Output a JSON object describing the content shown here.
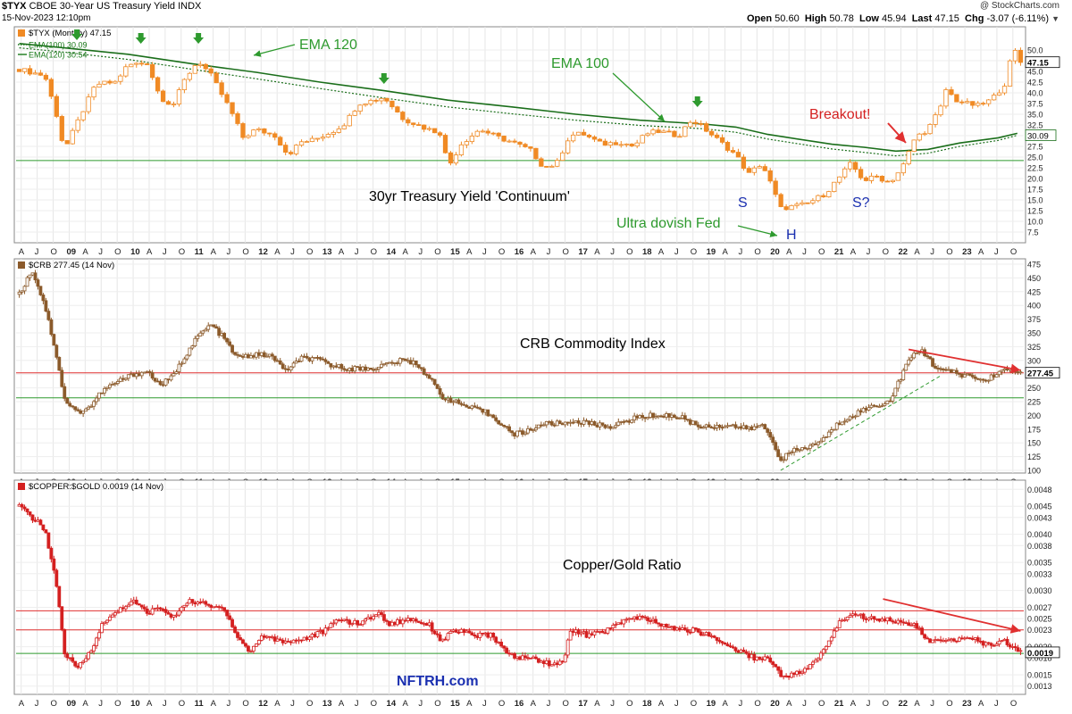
{
  "header": {
    "symbol": "$TYX",
    "name": "CBOE 30-Year US Treasury Yield",
    "exchange": "INDX",
    "date": "15-Nov-2023 12:10pm",
    "brand": "@ StockCharts.com",
    "open_label": "Open",
    "open": "50.60",
    "high_label": "High",
    "high": "50.78",
    "low_label": "Low",
    "low": "45.94",
    "last_label": "Last",
    "last": "47.15",
    "chg_label": "Chg",
    "chg": "-3.07 (-6.11%)",
    "chevron_icon": "chevron-down-icon"
  },
  "x_axis": {
    "labels": [
      "A",
      "J",
      "O",
      "09",
      "A",
      "J",
      "O",
      "10",
      "A",
      "J",
      "O",
      "11",
      "A",
      "J",
      "O",
      "12",
      "A",
      "J",
      "O",
      "13",
      "A",
      "J",
      "O",
      "14",
      "A",
      "J",
      "O",
      "15",
      "A",
      "J",
      "O",
      "16",
      "A",
      "J",
      "O",
      "17",
      "A",
      "J",
      "O",
      "18",
      "A",
      "J",
      "O",
      "19",
      "A",
      "J",
      "O",
      "20",
      "A",
      "J",
      "O",
      "21",
      "A",
      "J",
      "O",
      "22",
      "A",
      "J",
      "O",
      "23",
      "A",
      "J",
      "O"
    ],
    "year_labels": [
      "09",
      "10",
      "11",
      "12",
      "13",
      "14",
      "15",
      "16",
      "17",
      "18",
      "19",
      "20",
      "21",
      "22",
      "23"
    ]
  },
  "chart_data": [
    {
      "type": "candlestick",
      "id": "tyx",
      "legend_title": "$TYX (Monthly) 47.15",
      "legend": [
        {
          "name": "EMA(100) 30.09",
          "color": "#1a7a1a",
          "style": "dotted"
        },
        {
          "name": "EMA(120) 30.54",
          "color": "#1a7a1a",
          "style": "solid"
        }
      ],
      "ylim": [
        7.5,
        52.5
      ],
      "yticks": [
        "50.0",
        "47.5",
        "45.0",
        "42.5",
        "40.0",
        "37.5",
        "35.0",
        "32.5",
        "30.0",
        "27.5",
        "25.0",
        "22.5",
        "20.0",
        "17.5",
        "15.0",
        "12.5",
        "10.0",
        "7.5"
      ],
      "last_value": "47.15",
      "ema100_value": "30.09",
      "up_color": "#ffffff",
      "down_color": "#f08a24",
      "hlines": [
        {
          "y": 24.2,
          "color": "#2e9a2e"
        }
      ],
      "ema120": [
        [
          2008.3,
          51.5
        ],
        [
          2009,
          50.5
        ],
        [
          2010,
          49.0
        ],
        [
          2011,
          46.8
        ],
        [
          2012,
          44.8
        ],
        [
          2013,
          42.5
        ],
        [
          2014,
          40.5
        ],
        [
          2015,
          38.3
        ],
        [
          2016,
          36.7
        ],
        [
          2017,
          35.0
        ],
        [
          2018,
          33.6
        ],
        [
          2019,
          32.7
        ],
        [
          2019.5,
          32.0
        ],
        [
          2020,
          30.3
        ],
        [
          2021,
          28.0
        ],
        [
          2021.5,
          27.3
        ],
        [
          2022,
          26.4
        ],
        [
          2022.5,
          26.8
        ],
        [
          2023,
          28.3
        ],
        [
          2023.6,
          29.5
        ],
        [
          2023.9,
          30.54
        ]
      ],
      "ema100": [
        [
          2008.3,
          50.5
        ],
        [
          2009,
          49.5
        ],
        [
          2010,
          47.8
        ],
        [
          2011,
          45.5
        ],
        [
          2012,
          43.3
        ],
        [
          2013,
          41.0
        ],
        [
          2014,
          38.8
        ],
        [
          2015,
          36.7
        ],
        [
          2016,
          35.1
        ],
        [
          2017,
          33.6
        ],
        [
          2018,
          32.4
        ],
        [
          2019,
          31.6
        ],
        [
          2019.5,
          30.8
        ],
        [
          2020,
          29.2
        ],
        [
          2021,
          26.9
        ],
        [
          2021.5,
          26.1
        ],
        [
          2022,
          25.3
        ],
        [
          2022.5,
          25.9
        ],
        [
          2023,
          27.5
        ],
        [
          2023.6,
          28.9
        ],
        [
          2023.9,
          30.09
        ]
      ],
      "series": [
        [
          2008.3,
          45.5
        ],
        [
          2008.7,
          44.0
        ],
        [
          2008.9,
          34.0
        ],
        [
          2009.0,
          26.5
        ],
        [
          2009.3,
          36.0
        ],
        [
          2009.5,
          42.0
        ],
        [
          2009.8,
          42.5
        ],
        [
          2010.0,
          46.5
        ],
        [
          2010.3,
          47.0
        ],
        [
          2010.5,
          39.0
        ],
        [
          2010.7,
          37.0
        ],
        [
          2010.9,
          43.5
        ],
        [
          2011.1,
          47.5
        ],
        [
          2011.3,
          44.0
        ],
        [
          2011.6,
          36.0
        ],
        [
          2011.8,
          29.5
        ],
        [
          2012.0,
          31.5
        ],
        [
          2012.3,
          30.0
        ],
        [
          2012.5,
          25.5
        ],
        [
          2012.7,
          28.5
        ],
        [
          2012.9,
          29.0
        ],
        [
          2013.2,
          31.0
        ],
        [
          2013.4,
          33.0
        ],
        [
          2013.6,
          37.5
        ],
        [
          2013.9,
          38.5
        ],
        [
          2014.0,
          39.0
        ],
        [
          2014.3,
          34.0
        ],
        [
          2014.6,
          32.0
        ],
        [
          2014.9,
          30.5
        ],
        [
          2015.0,
          22.5
        ],
        [
          2015.2,
          28.0
        ],
        [
          2015.5,
          31.5
        ],
        [
          2015.8,
          29.5
        ],
        [
          2016.0,
          28.5
        ],
        [
          2016.3,
          26.5
        ],
        [
          2016.5,
          22.5
        ],
        [
          2016.7,
          23.5
        ],
        [
          2016.9,
          30.0
        ],
        [
          2017.1,
          30.5
        ],
        [
          2017.4,
          28.0
        ],
        [
          2017.7,
          28.5
        ],
        [
          2017.9,
          27.5
        ],
        [
          2018.1,
          30.5
        ],
        [
          2018.3,
          31.0
        ],
        [
          2018.6,
          30.0
        ],
        [
          2018.8,
          33.5
        ],
        [
          2018.9,
          33.0
        ],
        [
          2019.1,
          30.5
        ],
        [
          2019.3,
          28.0
        ],
        [
          2019.5,
          25.5
        ],
        [
          2019.7,
          21.0
        ],
        [
          2019.9,
          23.5
        ],
        [
          2020.0,
          20.5
        ],
        [
          2020.2,
          13.0
        ],
        [
          2020.4,
          13.5
        ],
        [
          2020.6,
          14.0
        ],
        [
          2020.9,
          16.5
        ],
        [
          2021.1,
          20.0
        ],
        [
          2021.3,
          23.5
        ],
        [
          2021.5,
          19.5
        ],
        [
          2021.7,
          20.5
        ],
        [
          2021.9,
          19.0
        ],
        [
          2022.1,
          22.5
        ],
        [
          2022.3,
          29.5
        ],
        [
          2022.5,
          31.5
        ],
        [
          2022.7,
          36.5
        ],
        [
          2022.8,
          41.5
        ],
        [
          2022.9,
          38.5
        ],
        [
          2023.1,
          37.5
        ],
        [
          2023.3,
          37.0
        ],
        [
          2023.5,
          38.5
        ],
        [
          2023.7,
          42.0
        ],
        [
          2023.8,
          48.0
        ],
        [
          2023.9,
          50.5
        ],
        [
          2023.95,
          47.15
        ]
      ],
      "annotations": [
        {
          "text": "EMA 120",
          "color": "#2e9a2e"
        },
        {
          "text": "EMA 100",
          "color": "#2e9a2e"
        },
        {
          "text": "Breakout!",
          "color": "#d42020"
        },
        {
          "text": "30yr Treasury Yield 'Continuum'",
          "color": "#000000"
        },
        {
          "text": "Ultra dovish Fed",
          "color": "#2e9a2e"
        },
        {
          "text": "S",
          "color": "#1a2fb0"
        },
        {
          "text": "H",
          "color": "#1a2fb0"
        },
        {
          "text": "S?",
          "color": "#1a2fb0"
        }
      ],
      "marker_arrows": [
        2009.2,
        2010.2,
        2011.1,
        2014.0,
        2018.9
      ]
    },
    {
      "type": "candlestick",
      "id": "crb",
      "legend_title": "$CRB 277.45 (14 Nov)",
      "ylim": [
        100,
        475
      ],
      "yticks": [
        "475",
        "450",
        "425",
        "400",
        "375",
        "350",
        "325",
        "300",
        "275",
        "250",
        "225",
        "200",
        "175",
        "150",
        "125",
        "100"
      ],
      "last_value": "277.45",
      "up_color": "#ffffff",
      "down_color": "#8b5a2b",
      "hlines": [
        {
          "y": 277.45,
          "color": "#e03030"
        },
        {
          "y": 232,
          "color": "#2e9a2e"
        }
      ],
      "series": [
        [
          2008.3,
          420
        ],
        [
          2008.5,
          465
        ],
        [
          2008.7,
          400
        ],
        [
          2008.9,
          300
        ],
        [
          2009.0,
          230
        ],
        [
          2009.2,
          205
        ],
        [
          2009.4,
          215
        ],
        [
          2009.6,
          245
        ],
        [
          2009.9,
          265
        ],
        [
          2010.1,
          275
        ],
        [
          2010.3,
          280
        ],
        [
          2010.5,
          255
        ],
        [
          2010.7,
          270
        ],
        [
          2010.9,
          310
        ],
        [
          2011.1,
          345
        ],
        [
          2011.3,
          365
        ],
        [
          2011.5,
          340
        ],
        [
          2011.7,
          305
        ],
        [
          2012.0,
          310
        ],
        [
          2012.2,
          310
        ],
        [
          2012.5,
          280
        ],
        [
          2012.7,
          305
        ],
        [
          2013.0,
          300
        ],
        [
          2013.2,
          290
        ],
        [
          2013.5,
          285
        ],
        [
          2013.8,
          285
        ],
        [
          2014.1,
          295
        ],
        [
          2014.3,
          300
        ],
        [
          2014.5,
          295
        ],
        [
          2014.7,
          270
        ],
        [
          2014.9,
          235
        ],
        [
          2015.1,
          225
        ],
        [
          2015.3,
          215
        ],
        [
          2015.6,
          205
        ],
        [
          2015.9,
          180
        ],
        [
          2016.0,
          165
        ],
        [
          2016.2,
          170
        ],
        [
          2016.5,
          185
        ],
        [
          2016.8,
          185
        ],
        [
          2017.0,
          190
        ],
        [
          2017.3,
          183
        ],
        [
          2017.6,
          180
        ],
        [
          2017.9,
          195
        ],
        [
          2018.2,
          200
        ],
        [
          2018.4,
          200
        ],
        [
          2018.7,
          195
        ],
        [
          2018.9,
          180
        ],
        [
          2019.1,
          180
        ],
        [
          2019.4,
          182
        ],
        [
          2019.7,
          175
        ],
        [
          2019.9,
          182
        ],
        [
          2020.0,
          170
        ],
        [
          2020.2,
          120
        ],
        [
          2020.4,
          135
        ],
        [
          2020.7,
          145
        ],
        [
          2020.9,
          160
        ],
        [
          2021.1,
          185
        ],
        [
          2021.3,
          200
        ],
        [
          2021.6,
          215
        ],
        [
          2021.9,
          225
        ],
        [
          2022.0,
          250
        ],
        [
          2022.2,
          300
        ],
        [
          2022.4,
          320
        ],
        [
          2022.6,
          290
        ],
        [
          2022.8,
          280
        ],
        [
          2023.0,
          275
        ],
        [
          2023.2,
          270
        ],
        [
          2023.4,
          262
        ],
        [
          2023.6,
          280
        ],
        [
          2023.8,
          282
        ],
        [
          2023.95,
          277.45
        ]
      ],
      "trendlines": [
        {
          "from": [
            2020.2,
            100
          ],
          "to": [
            2022.7,
            272
          ],
          "color": "#2e9a2e",
          "dash": true
        },
        {
          "from": [
            2022.2,
            320
          ],
          "to": [
            2023.95,
            282
          ],
          "color": "#e03030",
          "dash": false
        }
      ],
      "annotations": [
        {
          "text": "CRB Commodity Index",
          "color": "#000000"
        }
      ]
    },
    {
      "type": "candlestick",
      "id": "coppergold",
      "legend_title": "$COPPER:$GOLD 0.0019 (14 Nov)",
      "ylim": [
        0.0012,
        0.0049
      ],
      "yticks": [
        "0.0048",
        "0.0045",
        "0.0043",
        "0.0040",
        "0.0038",
        "0.0035",
        "0.0033",
        "0.0030",
        "0.0027",
        "0.0025",
        "0.0023",
        "0.0020",
        "0.0018",
        "0.0015",
        "0.0013"
      ],
      "last_value": "0.0019",
      "up_color": "#ffffff",
      "down_color": "#d42020",
      "hlines": [
        {
          "y": 0.00264,
          "color": "#e03030"
        },
        {
          "y": 0.0023,
          "color": "#e03030"
        },
        {
          "y": 0.00188,
          "color": "#2e9a2e"
        }
      ],
      "series": [
        [
          2008.3,
          0.0045
        ],
        [
          2008.5,
          0.0043
        ],
        [
          2008.7,
          0.0041
        ],
        [
          2008.9,
          0.003
        ],
        [
          2009.0,
          0.0019
        ],
        [
          2009.2,
          0.0016
        ],
        [
          2009.4,
          0.0019
        ],
        [
          2009.6,
          0.0024
        ],
        [
          2009.9,
          0.0027
        ],
        [
          2010.1,
          0.0028
        ],
        [
          2010.3,
          0.0026
        ],
        [
          2010.5,
          0.0027
        ],
        [
          2010.7,
          0.0025
        ],
        [
          2010.9,
          0.0028
        ],
        [
          2011.1,
          0.0028
        ],
        [
          2011.3,
          0.0027
        ],
        [
          2011.5,
          0.0027
        ],
        [
          2011.7,
          0.0022
        ],
        [
          2011.9,
          0.0019
        ],
        [
          2012.1,
          0.0022
        ],
        [
          2012.4,
          0.0021
        ],
        [
          2012.6,
          0.0021
        ],
        [
          2012.9,
          0.0022
        ],
        [
          2013.1,
          0.0023
        ],
        [
          2013.3,
          0.0025
        ],
        [
          2013.6,
          0.0024
        ],
        [
          2013.9,
          0.0026
        ],
        [
          2014.1,
          0.0024
        ],
        [
          2014.4,
          0.0025
        ],
        [
          2014.7,
          0.0024
        ],
        [
          2014.9,
          0.0021
        ],
        [
          2015.1,
          0.0023
        ],
        [
          2015.4,
          0.0022
        ],
        [
          2015.7,
          0.0022
        ],
        [
          2015.9,
          0.0019
        ],
        [
          2016.1,
          0.0018
        ],
        [
          2016.3,
          0.0018
        ],
        [
          2016.6,
          0.0017
        ],
        [
          2016.8,
          0.0017
        ],
        [
          2016.9,
          0.0023
        ],
        [
          2017.2,
          0.0022
        ],
        [
          2017.5,
          0.0023
        ],
        [
          2017.8,
          0.0025
        ],
        [
          2018.1,
          0.0025
        ],
        [
          2018.3,
          0.0024
        ],
        [
          2018.6,
          0.0023
        ],
        [
          2018.8,
          0.0023
        ],
        [
          2019.1,
          0.0022
        ],
        [
          2019.4,
          0.002
        ],
        [
          2019.6,
          0.0019
        ],
        [
          2019.8,
          0.0018
        ],
        [
          2020.0,
          0.0018
        ],
        [
          2020.2,
          0.0015
        ],
        [
          2020.4,
          0.0015
        ],
        [
          2020.6,
          0.0016
        ],
        [
          2020.8,
          0.0018
        ],
        [
          2020.9,
          0.002
        ],
        [
          2021.1,
          0.0024
        ],
        [
          2021.3,
          0.0026
        ],
        [
          2021.6,
          0.0025
        ],
        [
          2021.9,
          0.0025
        ],
        [
          2022.1,
          0.0024
        ],
        [
          2022.3,
          0.0024
        ],
        [
          2022.5,
          0.0021
        ],
        [
          2022.7,
          0.0021
        ],
        [
          2022.9,
          0.0021
        ],
        [
          2023.1,
          0.0022
        ],
        [
          2023.3,
          0.0021
        ],
        [
          2023.5,
          0.002
        ],
        [
          2023.7,
          0.0021
        ],
        [
          2023.95,
          0.0019
        ]
      ],
      "trendlines": [
        {
          "from": [
            2021.8,
            0.00285
          ],
          "to": [
            2023.95,
            0.00228
          ],
          "color": "#e03030",
          "dash": false
        }
      ],
      "annotations": [
        {
          "text": "Copper/Gold Ratio",
          "color": "#000000"
        },
        {
          "text": "NFTRH.com",
          "color": "#1a2fb0"
        }
      ]
    }
  ]
}
